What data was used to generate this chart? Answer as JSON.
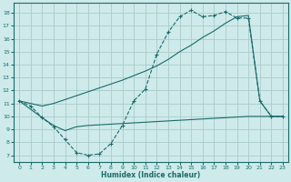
{
  "xlabel": "Humidex (Indice chaleur)",
  "bg_color": "#ceeaea",
  "grid_color": "#aacccc",
  "line_color": "#1a6b6b",
  "xlim": [
    -0.5,
    23.5
  ],
  "ylim": [
    6.5,
    18.8
  ],
  "xticks": [
    0,
    1,
    2,
    3,
    4,
    5,
    6,
    7,
    8,
    9,
    10,
    11,
    12,
    13,
    14,
    15,
    16,
    17,
    18,
    19,
    20,
    21,
    22,
    23
  ],
  "yticks": [
    7,
    8,
    9,
    10,
    11,
    12,
    13,
    14,
    15,
    16,
    17,
    18
  ],
  "line1_x": [
    0,
    1,
    2,
    3,
    4,
    5,
    6,
    7,
    8,
    9,
    10,
    11,
    12,
    13,
    14,
    15,
    16,
    17,
    18,
    19,
    20,
    21,
    22,
    23
  ],
  "line1_y": [
    11.2,
    10.8,
    9.9,
    9.2,
    8.2,
    7.2,
    7.0,
    7.1,
    7.9,
    9.3,
    11.2,
    12.1,
    14.8,
    16.5,
    17.7,
    18.2,
    17.7,
    17.8,
    18.1,
    17.6,
    17.6,
    11.2,
    10.0,
    10.0
  ],
  "line2_x": [
    0,
    2,
    3,
    4,
    5,
    6,
    7,
    8,
    9,
    10,
    11,
    12,
    13,
    14,
    15,
    16,
    17,
    18,
    19,
    20,
    21,
    22,
    23
  ],
  "line2_y": [
    11.2,
    9.9,
    9.3,
    8.9,
    9.2,
    9.3,
    9.35,
    9.4,
    9.45,
    9.5,
    9.55,
    9.6,
    9.65,
    9.7,
    9.75,
    9.8,
    9.85,
    9.9,
    9.95,
    10.0,
    10.0,
    10.0,
    10.0
  ],
  "line3_x": [
    0,
    1,
    2,
    3,
    4,
    5,
    6,
    7,
    8,
    9,
    10,
    11,
    12,
    13,
    14,
    15,
    16,
    17,
    18,
    19,
    20,
    21,
    22,
    23
  ],
  "line3_y": [
    11.2,
    11.0,
    10.8,
    11.0,
    11.3,
    11.6,
    11.9,
    12.2,
    12.5,
    12.8,
    13.15,
    13.5,
    13.9,
    14.4,
    15.0,
    15.5,
    16.1,
    16.6,
    17.2,
    17.7,
    17.8,
    11.2,
    10.0,
    10.0
  ]
}
